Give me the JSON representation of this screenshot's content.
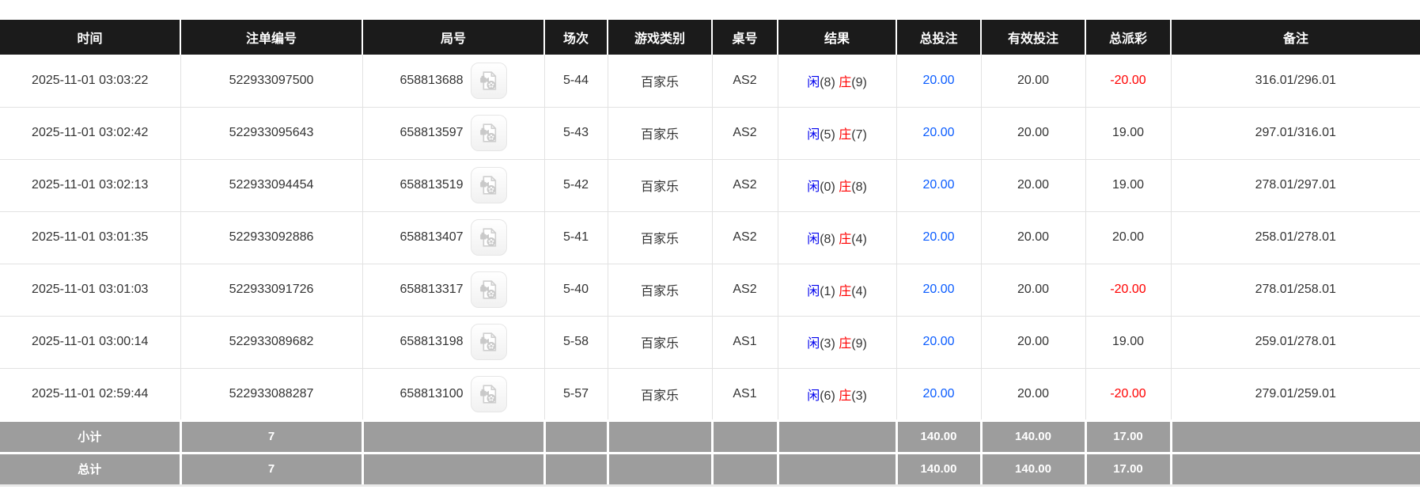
{
  "table": {
    "columns": [
      "时间",
      "注单编号",
      "局号",
      "场次",
      "游戏类别",
      "桌号",
      "结果",
      "总投注",
      "有效投注",
      "总派彩",
      "备注"
    ],
    "result_labels": {
      "player": "闲",
      "banker": "庄"
    },
    "rows": [
      {
        "time": "2025-11-01 03:03:22",
        "bet_no": "522933097500",
        "round_no": "658813688",
        "session": "5-44",
        "game": "百家乐",
        "table_no": "AS2",
        "player": "8",
        "banker": "9",
        "total_bet": "20.00",
        "valid_bet": "20.00",
        "payout": "-20.00",
        "remark": "316.01/296.01"
      },
      {
        "time": "2025-11-01 03:02:42",
        "bet_no": "522933095643",
        "round_no": "658813597",
        "session": "5-43",
        "game": "百家乐",
        "table_no": "AS2",
        "player": "5",
        "banker": "7",
        "total_bet": "20.00",
        "valid_bet": "20.00",
        "payout": "19.00",
        "remark": "297.01/316.01"
      },
      {
        "time": "2025-11-01 03:02:13",
        "bet_no": "522933094454",
        "round_no": "658813519",
        "session": "5-42",
        "game": "百家乐",
        "table_no": "AS2",
        "player": "0",
        "banker": "8",
        "total_bet": "20.00",
        "valid_bet": "20.00",
        "payout": "19.00",
        "remark": "278.01/297.01"
      },
      {
        "time": "2025-11-01 03:01:35",
        "bet_no": "522933092886",
        "round_no": "658813407",
        "session": "5-41",
        "game": "百家乐",
        "table_no": "AS2",
        "player": "8",
        "banker": "4",
        "total_bet": "20.00",
        "valid_bet": "20.00",
        "payout": "20.00",
        "remark": "258.01/278.01"
      },
      {
        "time": "2025-11-01 03:01:03",
        "bet_no": "522933091726",
        "round_no": "658813317",
        "session": "5-40",
        "game": "百家乐",
        "table_no": "AS2",
        "player": "1",
        "banker": "4",
        "total_bet": "20.00",
        "valid_bet": "20.00",
        "payout": "-20.00",
        "remark": "278.01/258.01"
      },
      {
        "time": "2025-11-01 03:00:14",
        "bet_no": "522933089682",
        "round_no": "658813198",
        "session": "5-58",
        "game": "百家乐",
        "table_no": "AS1",
        "player": "3",
        "banker": "9",
        "total_bet": "20.00",
        "valid_bet": "20.00",
        "payout": "19.00",
        "remark": "259.01/278.01"
      },
      {
        "time": "2025-11-01 02:59:44",
        "bet_no": "522933088287",
        "round_no": "658813100",
        "session": "5-57",
        "game": "百家乐",
        "table_no": "AS1",
        "player": "6",
        "banker": "3",
        "total_bet": "20.00",
        "valid_bet": "20.00",
        "payout": "-20.00",
        "remark": "279.01/259.01"
      }
    ],
    "subtotal": {
      "label": "小计",
      "count": "7",
      "total_bet": "140.00",
      "valid_bet": "140.00",
      "payout": "17.00"
    },
    "total": {
      "label": "总计",
      "count": "7",
      "total_bet": "140.00",
      "valid_bet": "140.00",
      "payout": "17.00"
    },
    "icons": {
      "video_icon": "video-record-icon"
    }
  },
  "colors": {
    "header_bg": "#1b1b1b",
    "footer_bg": "#9d9d9d",
    "player_blue": "#0000ee",
    "banker_red": "#ff0000",
    "bet_blue": "#0a5cff",
    "loss_red": "#ff0000"
  }
}
